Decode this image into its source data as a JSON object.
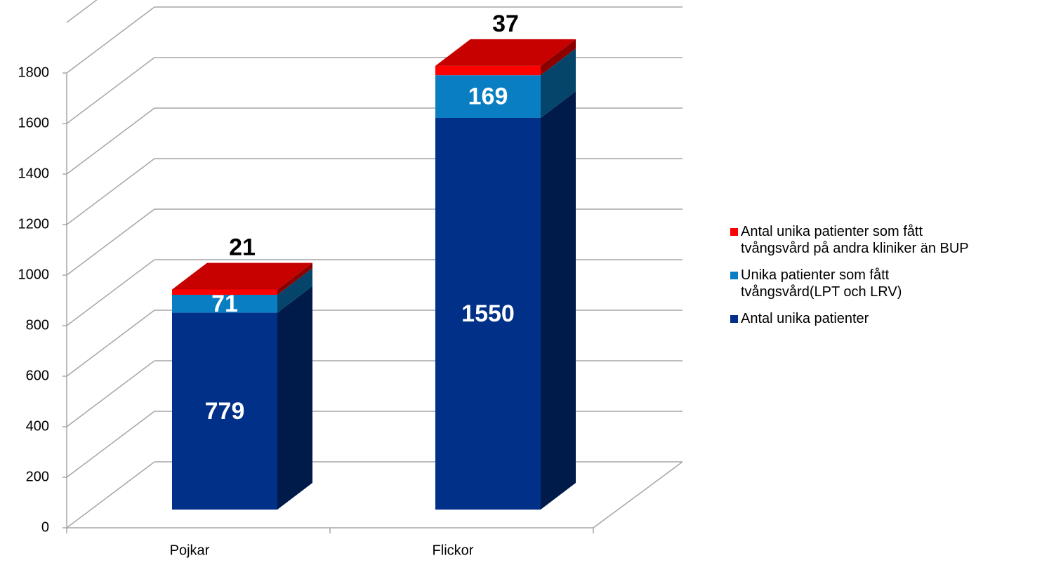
{
  "chart_data": {
    "type": "bar3d_stacked",
    "categories": [
      "Pojkar",
      "Flickor"
    ],
    "series": [
      {
        "name": "Antal unika patienter",
        "color": "#003087",
        "values": [
          779,
          1550
        ]
      },
      {
        "name": "Unika patienter som fått tvångsvård(LPT och LRV)",
        "color": "#0a7ec2",
        "values": [
          71,
          169
        ]
      },
      {
        "name": "Antal unika patienter som fått tvångsvård på andra kliniker än BUP",
        "color": "#ff0000",
        "values": [
          21,
          37
        ]
      }
    ],
    "ylim": [
      0,
      1800
    ],
    "yticks": [
      0,
      200,
      400,
      600,
      800,
      1000,
      1200,
      1400,
      1600,
      1800
    ],
    "grid": true
  }
}
